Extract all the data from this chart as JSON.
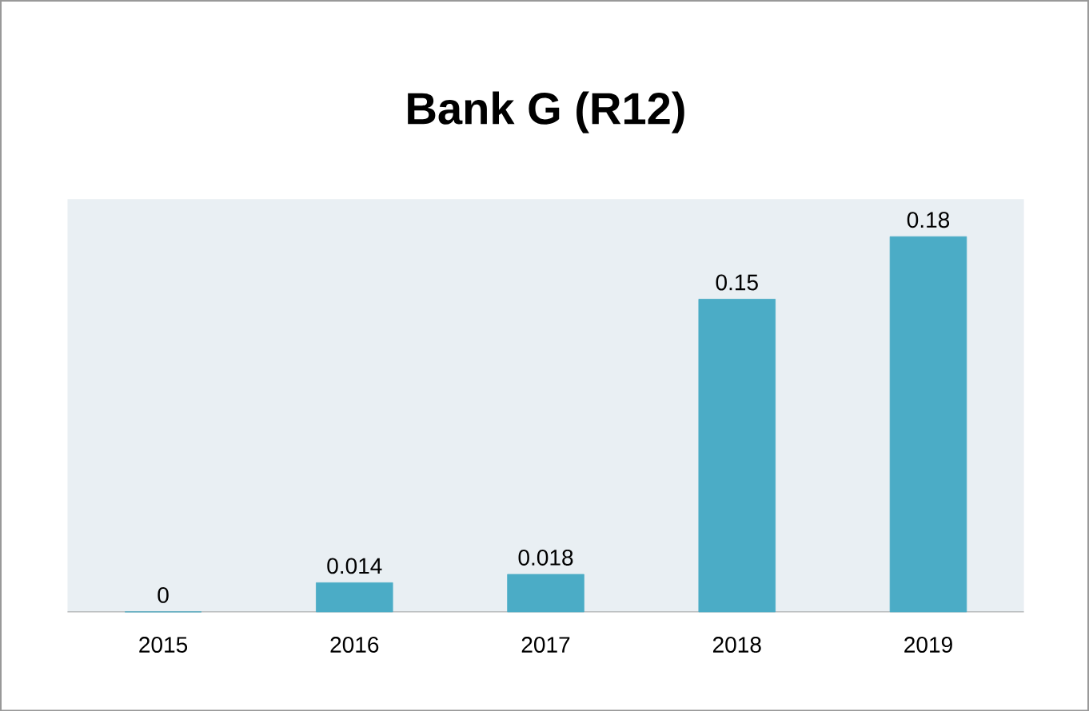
{
  "chart_data": {
    "type": "bar",
    "title": "Bank G (R12)",
    "categories": [
      "2015",
      "2016",
      "2017",
      "2018",
      "2019"
    ],
    "values": [
      0,
      0.014,
      0.018,
      0.15,
      0.18
    ],
    "color": "#4bacc6",
    "data_labels": true
  }
}
